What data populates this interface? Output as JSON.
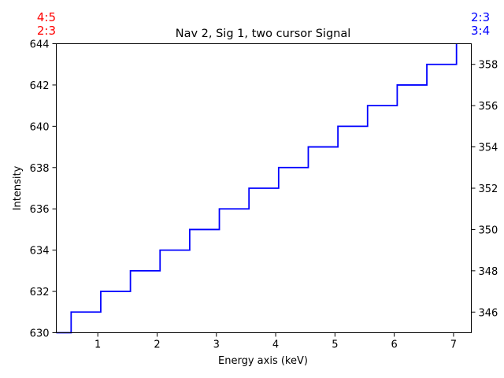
{
  "chart_data": {
    "type": "line",
    "title": "Nav 2, Sig 1, two cursor Signal",
    "xlabel": "Energy axis (keV)",
    "ylabel": "Intensity",
    "xlim": [
      0.3,
      7.3
    ],
    "ylim": [
      630,
      644
    ],
    "y2lim": [
      345,
      359
    ],
    "xticks": [
      1,
      2,
      3,
      4,
      5,
      6,
      7
    ],
    "yticks": [
      630,
      632,
      634,
      636,
      638,
      640,
      642,
      644
    ],
    "y2ticks": [
      346,
      348,
      350,
      352,
      354,
      356,
      358
    ],
    "grid": false,
    "step": "post",
    "series": [
      {
        "color": "#0000ff",
        "x": [
          0.3,
          0.55,
          1.05,
          1.55,
          2.05,
          2.55,
          3.05,
          3.55,
          4.05,
          4.55,
          5.05,
          5.55,
          6.05,
          6.55,
          7.05
        ],
        "values": [
          630,
          631,
          632,
          633,
          634,
          635,
          636,
          637,
          638,
          639,
          640,
          641,
          642,
          643,
          644
        ]
      }
    ],
    "corner_labels": {
      "left": {
        "color": "#ff0000",
        "line1": "4:5",
        "line2": "2:3"
      },
      "right": {
        "color": "#0000ff",
        "line1": "2:3",
        "line2": "3:4"
      }
    }
  }
}
